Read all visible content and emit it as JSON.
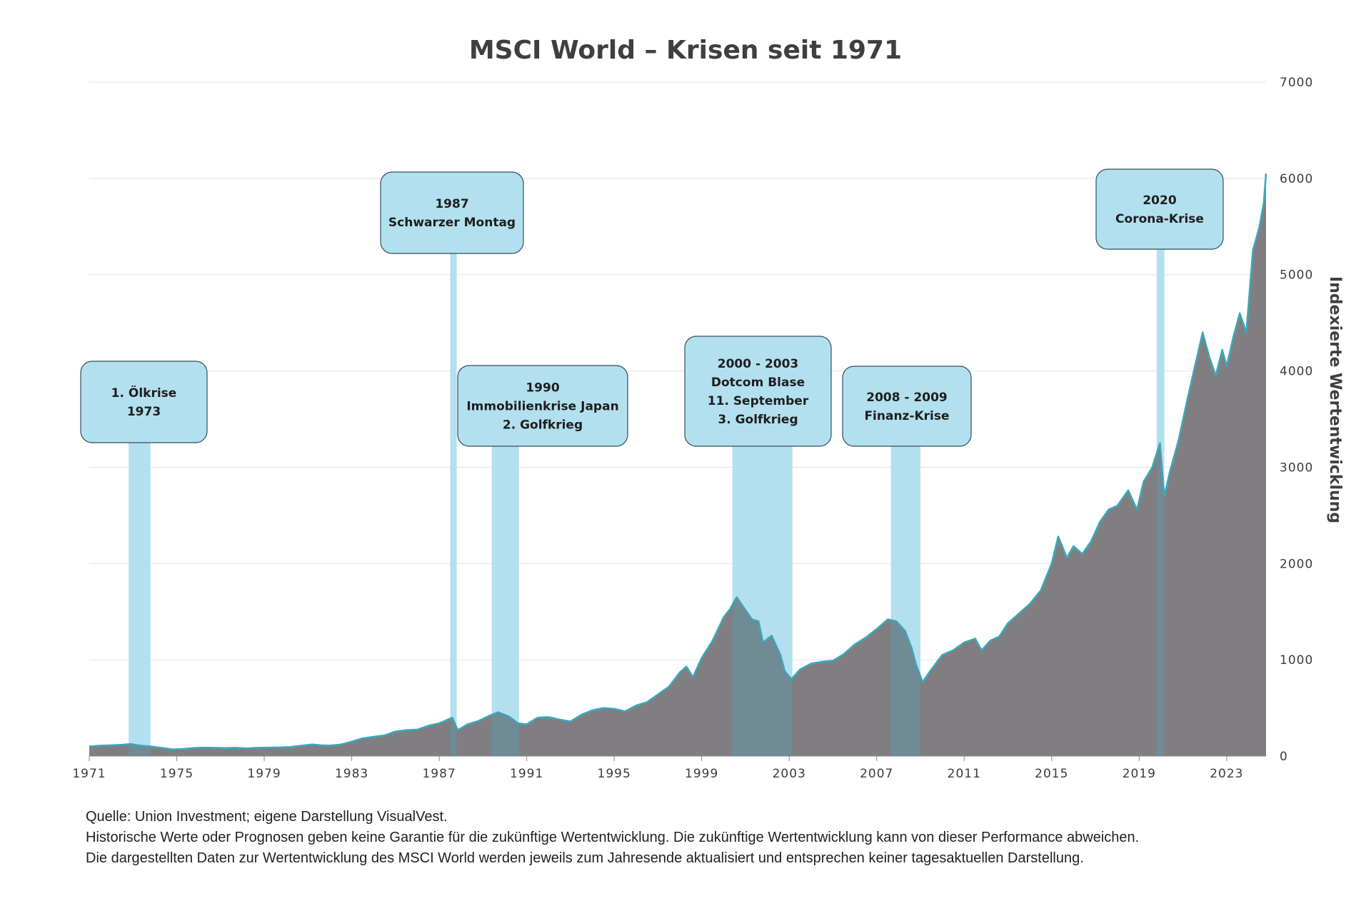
{
  "chart_data": {
    "type": "area",
    "title": "MSCI World – Krisen seit 1971",
    "ylabel": "Indexierte Wertentwicklung",
    "xlabel": "",
    "xlim": [
      1971,
      2024.8
    ],
    "ylim": [
      0,
      7000
    ],
    "x_ticks": [
      "1971",
      "1975",
      "1979",
      "1983",
      "1987",
      "1991",
      "1995",
      "1999",
      "2003",
      "2007",
      "2011",
      "2015",
      "2019",
      "2023"
    ],
    "y_ticks": [
      "0",
      "1000",
      "2000",
      "3000",
      "4000",
      "5000",
      "6000",
      "7000"
    ],
    "grid": "horizontal",
    "colors": {
      "area": "#807e80",
      "line": "#3aa9bd",
      "crisis_band": "#b3e0ef",
      "crisis_overlap": "#5e95a8",
      "box_fill": "#b3e0ef",
      "box_border": "#2f4f5a",
      "grid": "#e3e3e3",
      "tick_text": "#3c3c3c"
    },
    "series": [
      {
        "values": [
          [
            1971.0,
            100
          ],
          [
            1971.5,
            108
          ],
          [
            1972.0,
            112
          ],
          [
            1972.5,
            118
          ],
          [
            1972.9,
            125
          ],
          [
            1973.3,
            110
          ],
          [
            1973.8,
            100
          ],
          [
            1974.3,
            85
          ],
          [
            1974.8,
            70
          ],
          [
            1975.2,
            72
          ],
          [
            1975.7,
            82
          ],
          [
            1976.2,
            88
          ],
          [
            1976.7,
            86
          ],
          [
            1977.2,
            84
          ],
          [
            1977.7,
            86
          ],
          [
            1978.2,
            80
          ],
          [
            1978.7,
            86
          ],
          [
            1979.2,
            88
          ],
          [
            1979.7,
            90
          ],
          [
            1980.2,
            95
          ],
          [
            1980.7,
            108
          ],
          [
            1981.2,
            120
          ],
          [
            1981.6,
            112
          ],
          [
            1982.0,
            110
          ],
          [
            1982.5,
            120
          ],
          [
            1983.0,
            150
          ],
          [
            1983.5,
            185
          ],
          [
            1984.0,
            200
          ],
          [
            1984.5,
            215
          ],
          [
            1985.0,
            255
          ],
          [
            1985.5,
            270
          ],
          [
            1986.0,
            275
          ],
          [
            1986.5,
            315
          ],
          [
            1987.0,
            340
          ],
          [
            1987.6,
            400
          ],
          [
            1987.85,
            270
          ],
          [
            1988.3,
            330
          ],
          [
            1988.8,
            365
          ],
          [
            1989.3,
            420
          ],
          [
            1989.7,
            455
          ],
          [
            1990.2,
            410
          ],
          [
            1990.6,
            340
          ],
          [
            1991.0,
            330
          ],
          [
            1991.5,
            400
          ],
          [
            1992.0,
            405
          ],
          [
            1992.5,
            380
          ],
          [
            1993.0,
            360
          ],
          [
            1993.5,
            430
          ],
          [
            1994.0,
            475
          ],
          [
            1994.5,
            500
          ],
          [
            1995.0,
            490
          ],
          [
            1995.5,
            465
          ],
          [
            1996.0,
            525
          ],
          [
            1996.5,
            560
          ],
          [
            1997.0,
            640
          ],
          [
            1997.5,
            720
          ],
          [
            1998.0,
            870
          ],
          [
            1998.3,
            930
          ],
          [
            1998.6,
            820
          ],
          [
            1999.0,
            1020
          ],
          [
            1999.5,
            1200
          ],
          [
            2000.0,
            1440
          ],
          [
            2000.3,
            1530
          ],
          [
            2000.6,
            1650
          ],
          [
            2000.9,
            1550
          ],
          [
            2001.3,
            1420
          ],
          [
            2001.6,
            1400
          ],
          [
            2001.8,
            1180
          ],
          [
            2002.2,
            1250
          ],
          [
            2002.6,
            1050
          ],
          [
            2002.8,
            880
          ],
          [
            2003.1,
            800
          ],
          [
            2003.5,
            900
          ],
          [
            2004.0,
            960
          ],
          [
            2004.5,
            980
          ],
          [
            2005.0,
            990
          ],
          [
            2005.5,
            1060
          ],
          [
            2006.0,
            1160
          ],
          [
            2006.5,
            1230
          ],
          [
            2007.0,
            1320
          ],
          [
            2007.5,
            1420
          ],
          [
            2007.9,
            1400
          ],
          [
            2008.3,
            1300
          ],
          [
            2008.6,
            1120
          ],
          [
            2008.8,
            950
          ],
          [
            2009.1,
            770
          ],
          [
            2009.5,
            900
          ],
          [
            2010.0,
            1050
          ],
          [
            2010.5,
            1100
          ],
          [
            2011.0,
            1180
          ],
          [
            2011.5,
            1220
          ],
          [
            2011.8,
            1100
          ],
          [
            2012.2,
            1200
          ],
          [
            2012.6,
            1240
          ],
          [
            2013.0,
            1380
          ],
          [
            2013.5,
            1480
          ],
          [
            2014.0,
            1580
          ],
          [
            2014.5,
            1720
          ],
          [
            2015.0,
            2000
          ],
          [
            2015.3,
            2280
          ],
          [
            2015.7,
            2060
          ],
          [
            2016.0,
            2180
          ],
          [
            2016.4,
            2100
          ],
          [
            2016.8,
            2230
          ],
          [
            2017.2,
            2430
          ],
          [
            2017.6,
            2560
          ],
          [
            2018.0,
            2600
          ],
          [
            2018.5,
            2760
          ],
          [
            2018.9,
            2560
          ],
          [
            2019.2,
            2850
          ],
          [
            2019.6,
            3000
          ],
          [
            2019.95,
            3250
          ],
          [
            2020.15,
            2700
          ],
          [
            2020.4,
            2950
          ],
          [
            2020.8,
            3280
          ],
          [
            2021.2,
            3700
          ],
          [
            2021.6,
            4100
          ],
          [
            2021.9,
            4400
          ],
          [
            2022.2,
            4150
          ],
          [
            2022.5,
            3950
          ],
          [
            2022.8,
            4220
          ],
          [
            2023.0,
            4050
          ],
          [
            2023.3,
            4350
          ],
          [
            2023.6,
            4600
          ],
          [
            2023.9,
            4400
          ],
          [
            2024.2,
            5250
          ],
          [
            2024.5,
            5500
          ],
          [
            2024.7,
            5750
          ],
          [
            2024.8,
            6050
          ]
        ]
      }
    ],
    "crises": [
      {
        "label_lines": [
          "1. Ölkrise",
          "1973"
        ],
        "start": 1972.8,
        "end": 1973.8
      },
      {
        "label_lines": [
          "1987",
          "Schwarzer Montag"
        ],
        "start": 1987.5,
        "end": 1987.8
      },
      {
        "label_lines": [
          "1990",
          "Immobilienkrise Japan",
          "2. Golfkrieg"
        ],
        "start": 1989.4,
        "end": 1990.65
      },
      {
        "label_lines": [
          "2000 - 2003",
          "Dotcom Blase",
          "11. September",
          "3. Golfkrieg"
        ],
        "start": 2000.4,
        "end": 2003.15
      },
      {
        "label_lines": [
          "2008 - 2009",
          "Finanz-Krise"
        ],
        "start": 2007.65,
        "end": 2009.0
      },
      {
        "label_lines": [
          "2020",
          "Corona-Krise"
        ],
        "start": 2019.8,
        "end": 2020.15
      }
    ]
  },
  "footer": {
    "source": "Quelle: Union Investment; eigene Darstellung VisualVest.",
    "disclaimer1": "Historische Werte oder Prognosen geben keine Garantie für die zukünftige Wertentwicklung. Die zukünftige Wertentwicklung kann von dieser Performance abweichen.",
    "disclaimer2": "Die dargestellten Daten zur Wertentwicklung des MSCI World werden jeweils zum Jahresende aktualisiert und entsprechen keiner tagesaktuellen Darstellung."
  }
}
